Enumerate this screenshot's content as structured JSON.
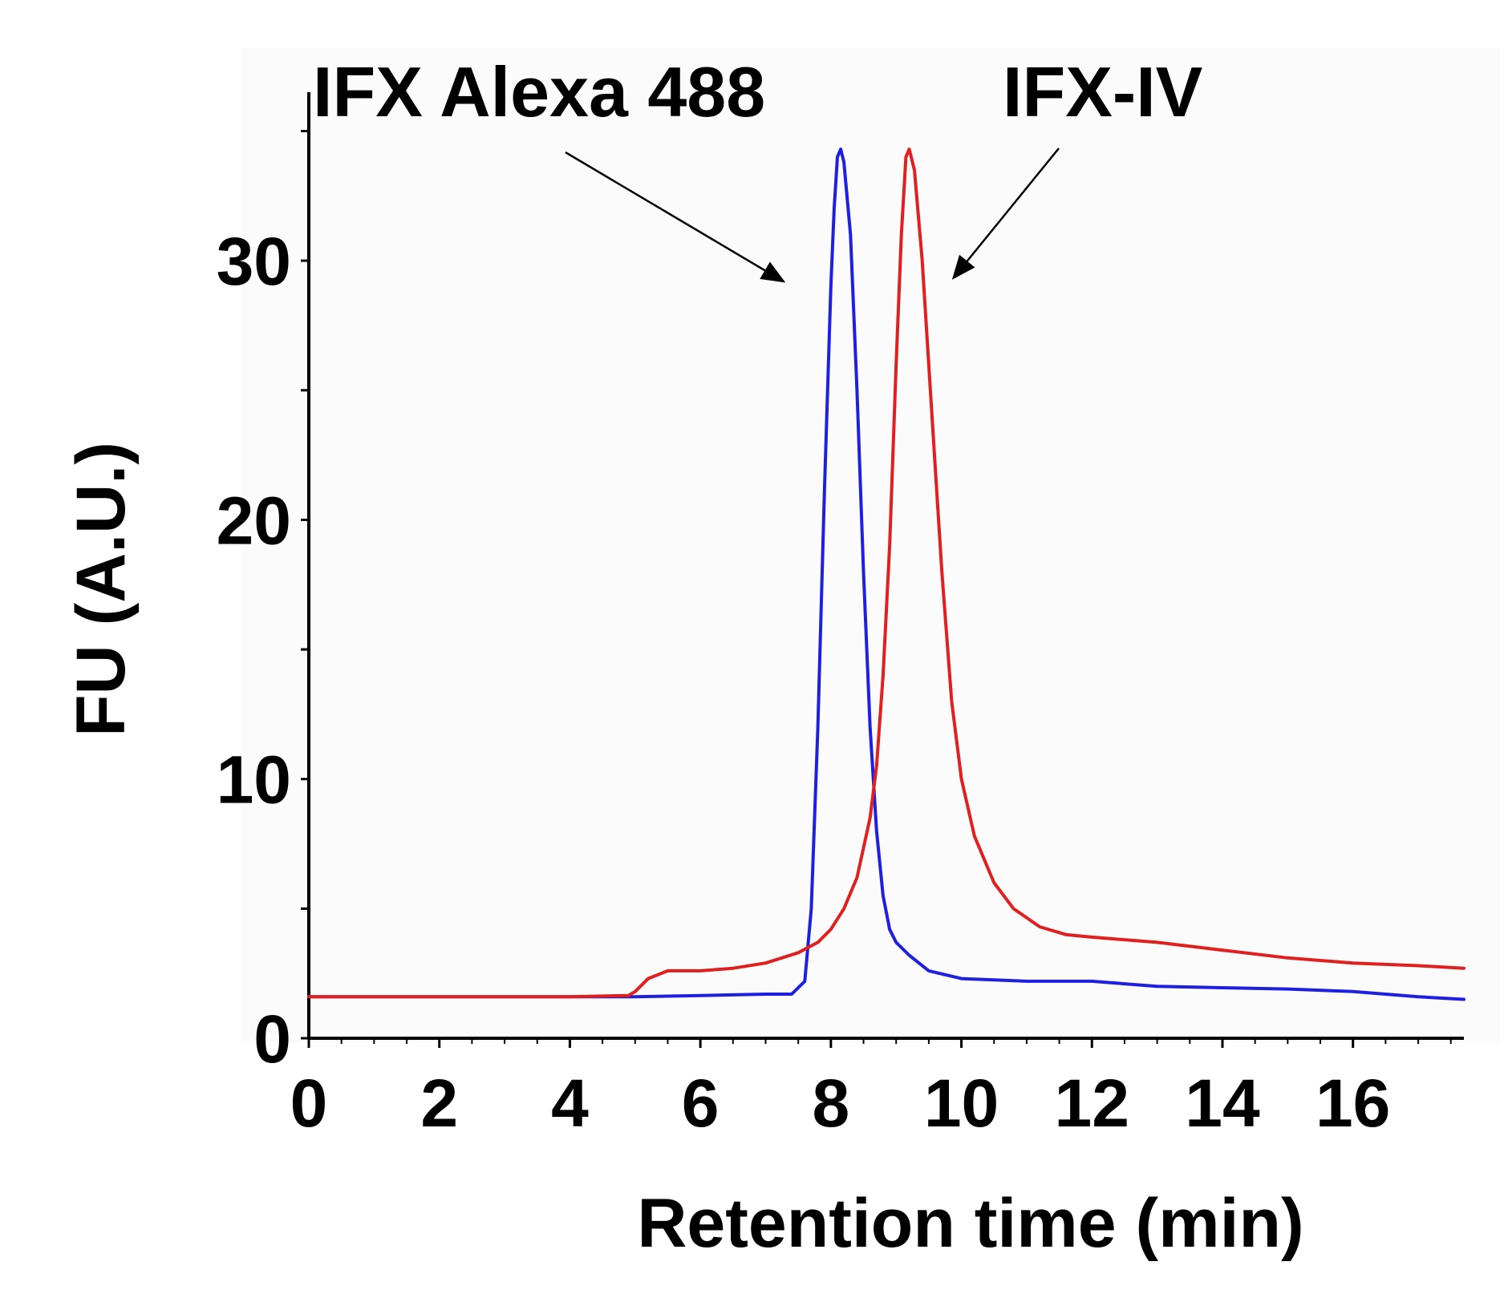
{
  "chart_data": {
    "type": "line",
    "xlabel": "Retention time (min)",
    "ylabel": "FU (A.U.)",
    "xlim": [
      0,
      17.7
    ],
    "ylim": [
      0,
      36.5
    ],
    "x_ticks": [
      0,
      2,
      4,
      6,
      8,
      10,
      12,
      14,
      16
    ],
    "y_ticks": [
      0,
      10,
      20,
      30
    ],
    "grid": false,
    "series": [
      {
        "name": "IFX Alexa 488",
        "color": "#1f1fe0",
        "points": [
          [
            0,
            1.6
          ],
          [
            2,
            1.6
          ],
          [
            4,
            1.6
          ],
          [
            5,
            1.6
          ],
          [
            6,
            1.65
          ],
          [
            7,
            1.7
          ],
          [
            7.4,
            1.7
          ],
          [
            7.6,
            2.2
          ],
          [
            7.7,
            5
          ],
          [
            7.8,
            12
          ],
          [
            7.9,
            21
          ],
          [
            8.0,
            29
          ],
          [
            8.05,
            32
          ],
          [
            8.1,
            34
          ],
          [
            8.15,
            34.3
          ],
          [
            8.2,
            33.8
          ],
          [
            8.3,
            31
          ],
          [
            8.4,
            25
          ],
          [
            8.5,
            18
          ],
          [
            8.6,
            12
          ],
          [
            8.7,
            8
          ],
          [
            8.8,
            5.5
          ],
          [
            8.9,
            4.2
          ],
          [
            9.0,
            3.7
          ],
          [
            9.2,
            3.2
          ],
          [
            9.5,
            2.6
          ],
          [
            10,
            2.3
          ],
          [
            11,
            2.2
          ],
          [
            12,
            2.2
          ],
          [
            13,
            2.0
          ],
          [
            14,
            1.95
          ],
          [
            15,
            1.9
          ],
          [
            16,
            1.8
          ],
          [
            17,
            1.6
          ],
          [
            17.7,
            1.5
          ]
        ]
      },
      {
        "name": "IFX-IV",
        "color": "#e01f1f",
        "points": [
          [
            0,
            1.6
          ],
          [
            2,
            1.6
          ],
          [
            4,
            1.6
          ],
          [
            4.9,
            1.65
          ],
          [
            5.0,
            1.8
          ],
          [
            5.2,
            2.3
          ],
          [
            5.5,
            2.6
          ],
          [
            6,
            2.6
          ],
          [
            6.5,
            2.7
          ],
          [
            7,
            2.9
          ],
          [
            7.5,
            3.3
          ],
          [
            7.8,
            3.7
          ],
          [
            8.0,
            4.2
          ],
          [
            8.2,
            5.0
          ],
          [
            8.4,
            6.2
          ],
          [
            8.6,
            8.5
          ],
          [
            8.7,
            10.5
          ],
          [
            8.8,
            14
          ],
          [
            8.9,
            19
          ],
          [
            9.0,
            26
          ],
          [
            9.08,
            31
          ],
          [
            9.15,
            34
          ],
          [
            9.2,
            34.3
          ],
          [
            9.28,
            33.5
          ],
          [
            9.4,
            30
          ],
          [
            9.55,
            24
          ],
          [
            9.7,
            18
          ],
          [
            9.85,
            13
          ],
          [
            10.0,
            10
          ],
          [
            10.2,
            7.8
          ],
          [
            10.5,
            6.0
          ],
          [
            10.8,
            5.0
          ],
          [
            11.2,
            4.3
          ],
          [
            11.6,
            4.0
          ],
          [
            12,
            3.9
          ],
          [
            13,
            3.7
          ],
          [
            14,
            3.4
          ],
          [
            15,
            3.1
          ],
          [
            16,
            2.9
          ],
          [
            17,
            2.8
          ],
          [
            17.7,
            2.7
          ]
        ]
      }
    ],
    "annotations": [
      {
        "text": "IFX Alexa 488",
        "points_to_series": "IFX Alexa 488"
      },
      {
        "text": "IFX-IV",
        "points_to_series": "IFX-IV"
      }
    ]
  }
}
